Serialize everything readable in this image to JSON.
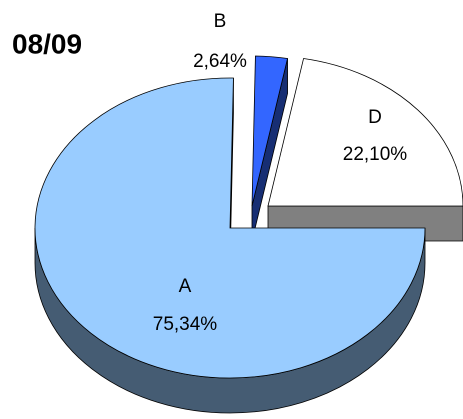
{
  "chart_data": {
    "type": "pie",
    "title": "08/09",
    "categories": [
      "A",
      "B",
      "D"
    ],
    "values": [
      75.34,
      2.64,
      22.1
    ],
    "value_labels": [
      "75,34%",
      "2,64%",
      "22,10%"
    ],
    "colors": [
      "#99ccff",
      "#3366ff",
      "#ffffff"
    ]
  }
}
